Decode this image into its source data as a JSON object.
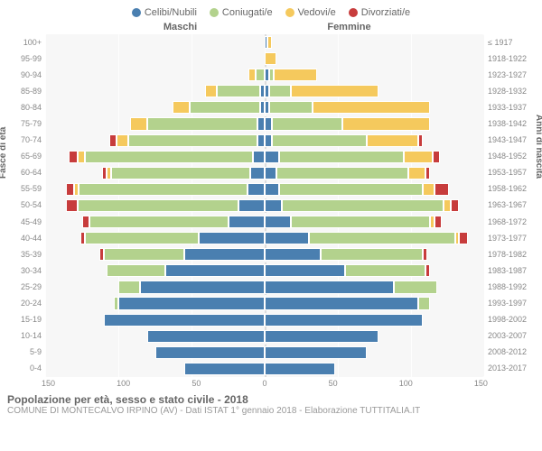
{
  "legend": [
    {
      "label": "Celibi/Nubili",
      "color": "#4a7fb0"
    },
    {
      "label": "Coniugati/e",
      "color": "#b3d28d"
    },
    {
      "label": "Vedovi/e",
      "color": "#f5c95d"
    },
    {
      "label": "Divorziati/e",
      "color": "#c73c3c"
    }
  ],
  "header_m": "Maschi",
  "header_f": "Femmine",
  "ylabel_left": "Fasce di età",
  "ylabel_right": "Anni di nascita",
  "xmax": 150,
  "xticks": [
    "150",
    "100",
    "50",
    "0",
    "50",
    "100",
    "150"
  ],
  "title": "Popolazione per età, sesso e stato civile - 2018",
  "subtitle": "COMUNE DI MONTECALVO IRPINO (AV) - Dati ISTAT 1° gennaio 2018 - Elaborazione TUTTITALIA.IT",
  "rows": [
    {
      "age": "100+",
      "birth": "≤ 1917",
      "m": [
        0,
        0,
        0,
        0
      ],
      "f": [
        2,
        0,
        3,
        0
      ]
    },
    {
      "age": "95-99",
      "birth": "1918-1922",
      "m": [
        0,
        0,
        0,
        0
      ],
      "f": [
        0,
        0,
        8,
        0
      ]
    },
    {
      "age": "90-94",
      "birth": "1923-1927",
      "m": [
        0,
        6,
        5,
        0
      ],
      "f": [
        3,
        3,
        30,
        0
      ]
    },
    {
      "age": "85-89",
      "birth": "1928-1932",
      "m": [
        3,
        30,
        8,
        0
      ],
      "f": [
        3,
        15,
        60,
        0
      ]
    },
    {
      "age": "80-84",
      "birth": "1933-1937",
      "m": [
        3,
        48,
        12,
        0
      ],
      "f": [
        3,
        30,
        80,
        0
      ]
    },
    {
      "age": "75-79",
      "birth": "1938-1942",
      "m": [
        5,
        75,
        12,
        0
      ],
      "f": [
        5,
        48,
        60,
        0
      ]
    },
    {
      "age": "70-74",
      "birth": "1943-1947",
      "m": [
        5,
        88,
        8,
        5
      ],
      "f": [
        5,
        65,
        35,
        3
      ]
    },
    {
      "age": "65-69",
      "birth": "1948-1952",
      "m": [
        8,
        115,
        5,
        6
      ],
      "f": [
        10,
        85,
        20,
        5
      ]
    },
    {
      "age": "60-64",
      "birth": "1953-1957",
      "m": [
        10,
        95,
        3,
        3
      ],
      "f": [
        8,
        90,
        12,
        3
      ]
    },
    {
      "age": "55-59",
      "birth": "1958-1962",
      "m": [
        12,
        115,
        3,
        6
      ],
      "f": [
        10,
        98,
        8,
        10
      ]
    },
    {
      "age": "50-54",
      "birth": "1963-1967",
      "m": [
        18,
        110,
        0,
        8
      ],
      "f": [
        12,
        110,
        5,
        6
      ]
    },
    {
      "age": "45-49",
      "birth": "1968-1972",
      "m": [
        25,
        95,
        0,
        5
      ],
      "f": [
        18,
        95,
        3,
        5
      ]
    },
    {
      "age": "40-44",
      "birth": "1973-1977",
      "m": [
        45,
        78,
        0,
        3
      ],
      "f": [
        30,
        100,
        3,
        6
      ]
    },
    {
      "age": "35-39",
      "birth": "1978-1982",
      "m": [
        55,
        55,
        0,
        3
      ],
      "f": [
        38,
        70,
        0,
        3
      ]
    },
    {
      "age": "30-34",
      "birth": "1983-1987",
      "m": [
        68,
        40,
        0,
        0
      ],
      "f": [
        55,
        55,
        0,
        3
      ]
    },
    {
      "age": "25-29",
      "birth": "1988-1992",
      "m": [
        85,
        15,
        0,
        0
      ],
      "f": [
        88,
        30,
        0,
        0
      ]
    },
    {
      "age": "20-24",
      "birth": "1993-1997",
      "m": [
        100,
        3,
        0,
        0
      ],
      "f": [
        105,
        8,
        0,
        0
      ]
    },
    {
      "age": "15-19",
      "birth": "1998-2002",
      "m": [
        110,
        0,
        0,
        0
      ],
      "f": [
        108,
        0,
        0,
        0
      ]
    },
    {
      "age": "10-14",
      "birth": "2003-2007",
      "m": [
        80,
        0,
        0,
        0
      ],
      "f": [
        78,
        0,
        0,
        0
      ]
    },
    {
      "age": "5-9",
      "birth": "2008-2012",
      "m": [
        75,
        0,
        0,
        0
      ],
      "f": [
        70,
        0,
        0,
        0
      ]
    },
    {
      "age": "0-4",
      "birth": "2013-2017",
      "m": [
        55,
        0,
        0,
        0
      ],
      "f": [
        48,
        0,
        0,
        0
      ]
    }
  ]
}
